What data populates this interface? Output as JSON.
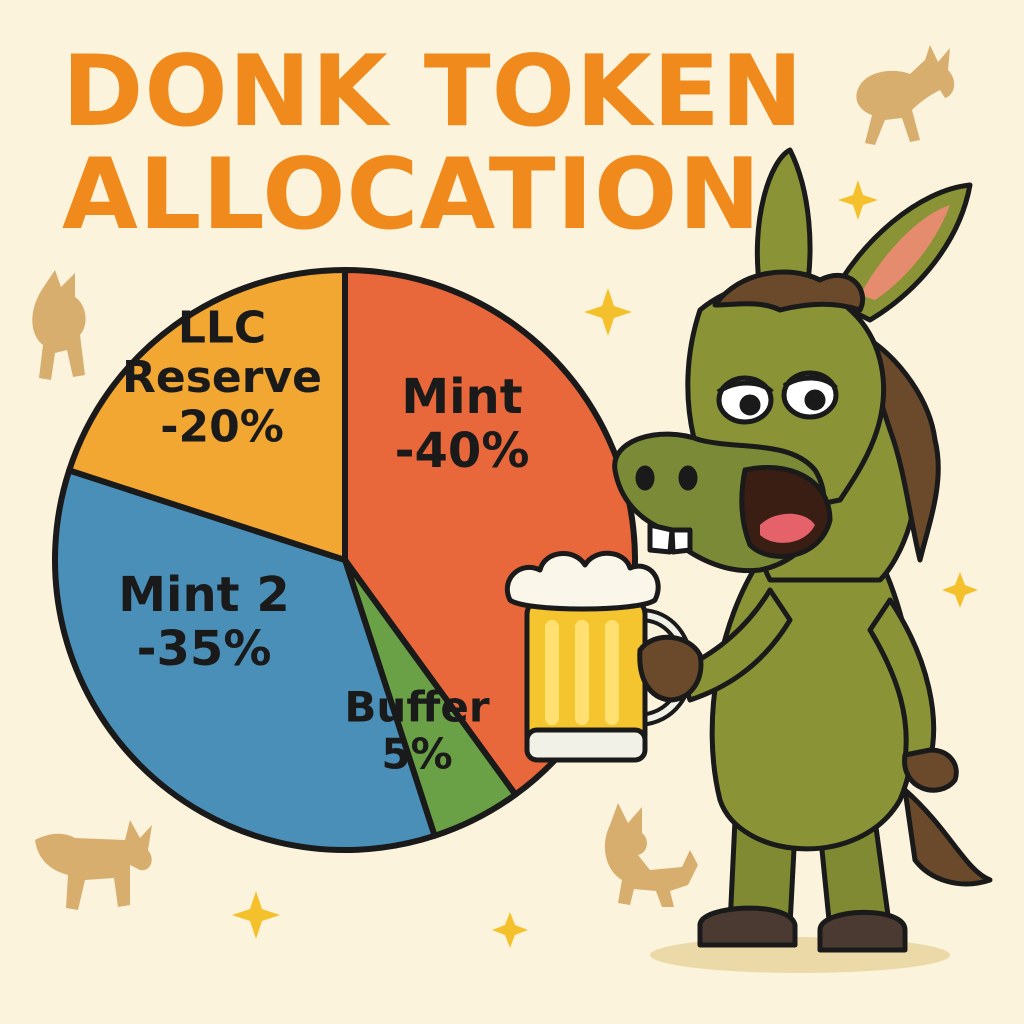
{
  "title_lines": [
    "DONK TOKEN",
    "ALLOCATION"
  ],
  "colors": {
    "title": "#f08a1c",
    "background": "#fbf3dc",
    "outline": "#1a1a1a"
  },
  "icons": [
    "donkey-mascot-icon",
    "beer-mug-icon",
    "donkey-silhouette-icon",
    "sparkle-star-icon"
  ],
  "chart_data": {
    "type": "pie",
    "title": "DONK TOKEN ALLOCATION",
    "legend": "none",
    "slices": [
      {
        "label": "Mint",
        "label_lines": [
          "Mint",
          "-40%"
        ],
        "value": 40,
        "color": "#e8673b"
      },
      {
        "label": "Buffer",
        "label_lines": [
          "Buffer",
          "5%"
        ],
        "value": 5,
        "color": "#6aa046"
      },
      {
        "label": "Mint 2",
        "label_lines": [
          "Mint 2",
          "-35%"
        ],
        "value": 35,
        "color": "#4a8fb8"
      },
      {
        "label": "LLC Reserve",
        "label_lines": [
          "LLC",
          "Reserve",
          "-20%"
        ],
        "value": 20,
        "color": "#f2a733"
      }
    ]
  }
}
